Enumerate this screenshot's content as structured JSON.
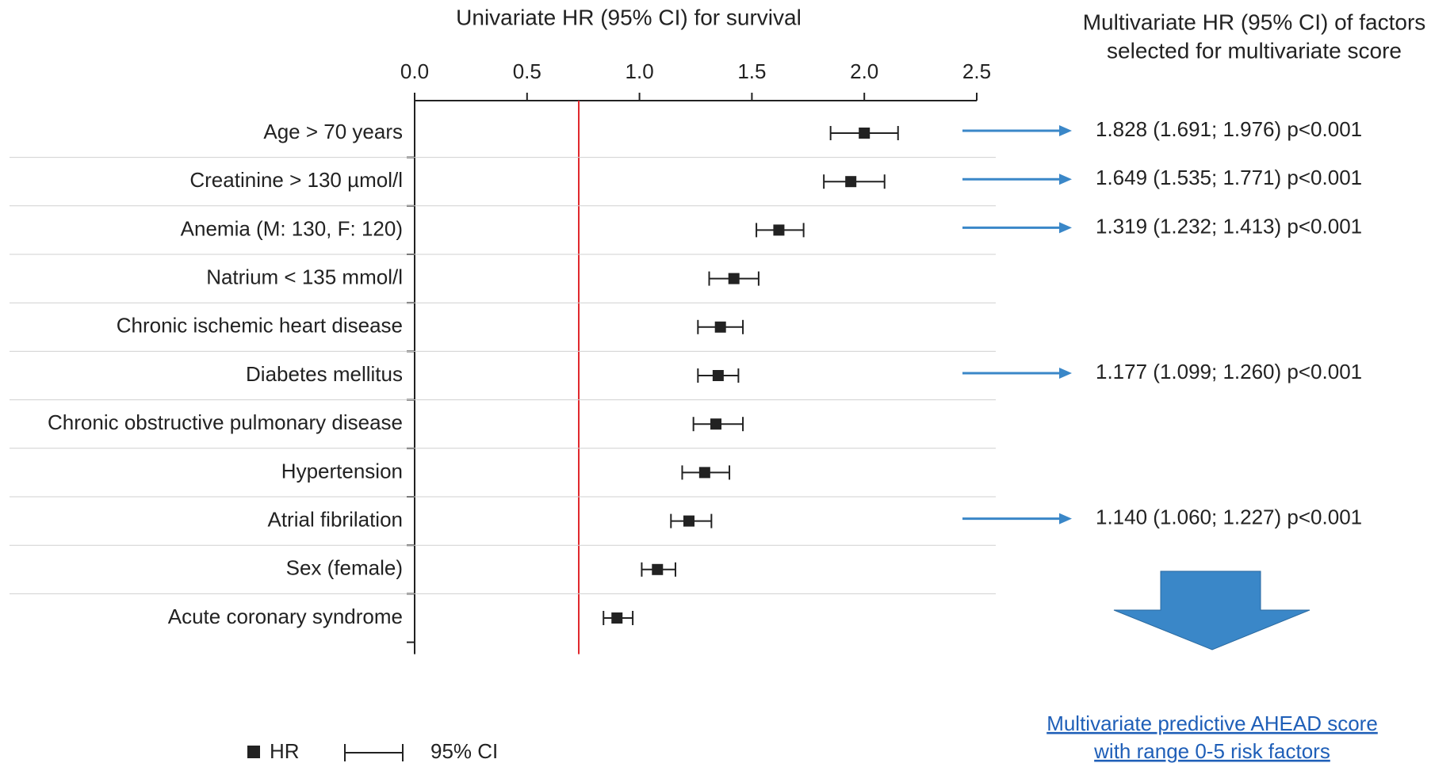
{
  "chart_data": {
    "type": "forest",
    "title": "Univariate HR (95% CI) for survival",
    "right_title": [
      "Multivariate HR (95% CI) of factors",
      "selected for multivariate score"
    ],
    "categories": [
      "Age > 70 years",
      "Creatinine > 130 µmol/l",
      "Anemia (M: 130, F: 120)",
      "Natrium < 135 mmol/l",
      "Chronic ischemic heart disease",
      "Diabetes mellitus",
      "Chronic obstructive pulmonary disease",
      "Hypertension",
      "Atrial fibrilation",
      "Sex (female)",
      "Acute coronary syndrome"
    ],
    "values": [
      2.0,
      1.94,
      1.62,
      1.42,
      1.36,
      1.35,
      1.34,
      1.29,
      1.22,
      1.08,
      0.9
    ],
    "lower": [
      1.85,
      1.82,
      1.52,
      1.31,
      1.26,
      1.26,
      1.24,
      1.19,
      1.14,
      1.01,
      0.84
    ],
    "upper": [
      2.15,
      2.09,
      1.73,
      1.53,
      1.46,
      1.44,
      1.46,
      1.4,
      1.32,
      1.16,
      0.97
    ],
    "reference_line": 0.73,
    "reference_color": "#e0262b",
    "color": "#222222",
    "arrow_color": "#3a87c8",
    "multivariate": [
      "1.828 (1.691; 1.976) p<0.001",
      "1.649 (1.535; 1.771) p<0.001",
      "1.319 (1.232; 1.413) p<0.001",
      null,
      null,
      "1.177 (1.099; 1.260) p<0.001",
      null,
      null,
      "1.140 (1.060; 1.227) p<0.001",
      null,
      null
    ],
    "score_link": [
      "Multivariate predictive AHEAD score",
      "with range 0-5 risk factors"
    ],
    "legend": {
      "marker": "HR",
      "interval": "95% CI"
    },
    "xlim": [
      0,
      2.5
    ],
    "xticks": [
      {
        "value": 0,
        "label": "0.0"
      },
      0.5,
      {
        "value": 1,
        "label": "1.0"
      },
      1.5,
      {
        "value": 2,
        "label": "2.0"
      },
      2.5
    ]
  }
}
